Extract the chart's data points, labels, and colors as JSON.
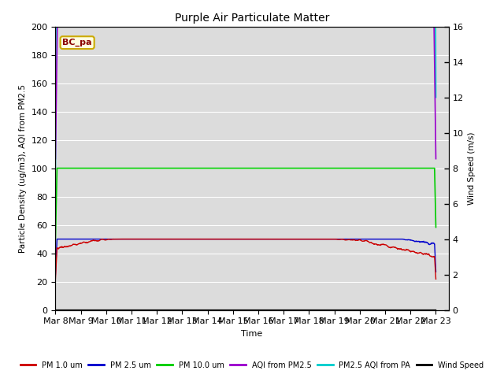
{
  "title": "Purple Air Particulate Matter",
  "xlabel": "Time",
  "ylabel_left": "Particle Density (ug/m3), AQI from PM2.5",
  "ylabel_right": "Wind Speed (m/s)",
  "annotation": "BC_pa",
  "xlim_days": 15.5,
  "ylim_left": [
    0,
    200
  ],
  "ylim_right": [
    0,
    16
  ],
  "xtick_labels": [
    "Mar 8",
    "Mar 9",
    "Mar 10",
    "Mar 11",
    "Mar 12",
    "Mar 13",
    "Mar 14",
    "Mar 15",
    "Mar 16",
    "Mar 17",
    "Mar 18",
    "Mar 19",
    "Mar 20",
    "Mar 21",
    "Mar 22",
    "Mar 23"
  ],
  "legend": [
    {
      "label": "PM 1.0 um",
      "color": "#cc0000",
      "lw": 1.0
    },
    {
      "label": "PM 2.5 um",
      "color": "#0000cc",
      "lw": 1.0
    },
    {
      "label": "PM 10.0 um",
      "color": "#00cc00",
      "lw": 1.2
    },
    {
      "label": "AQI from PM2.5",
      "color": "#9900cc",
      "lw": 1.2
    },
    {
      "label": "PM2.5 AQI from PA",
      "color": "#00cccc",
      "lw": 1.2
    },
    {
      "label": "Wind Speed",
      "color": "#000000",
      "lw": 1.0
    }
  ],
  "bg_color": "#dcdcdc",
  "fig_bg": "#ffffff",
  "yticks_left": [
    0,
    20,
    40,
    60,
    80,
    100,
    120,
    140,
    160,
    180,
    200
  ],
  "yticks_right": [
    0,
    2,
    4,
    6,
    8,
    10,
    12,
    14,
    16
  ]
}
